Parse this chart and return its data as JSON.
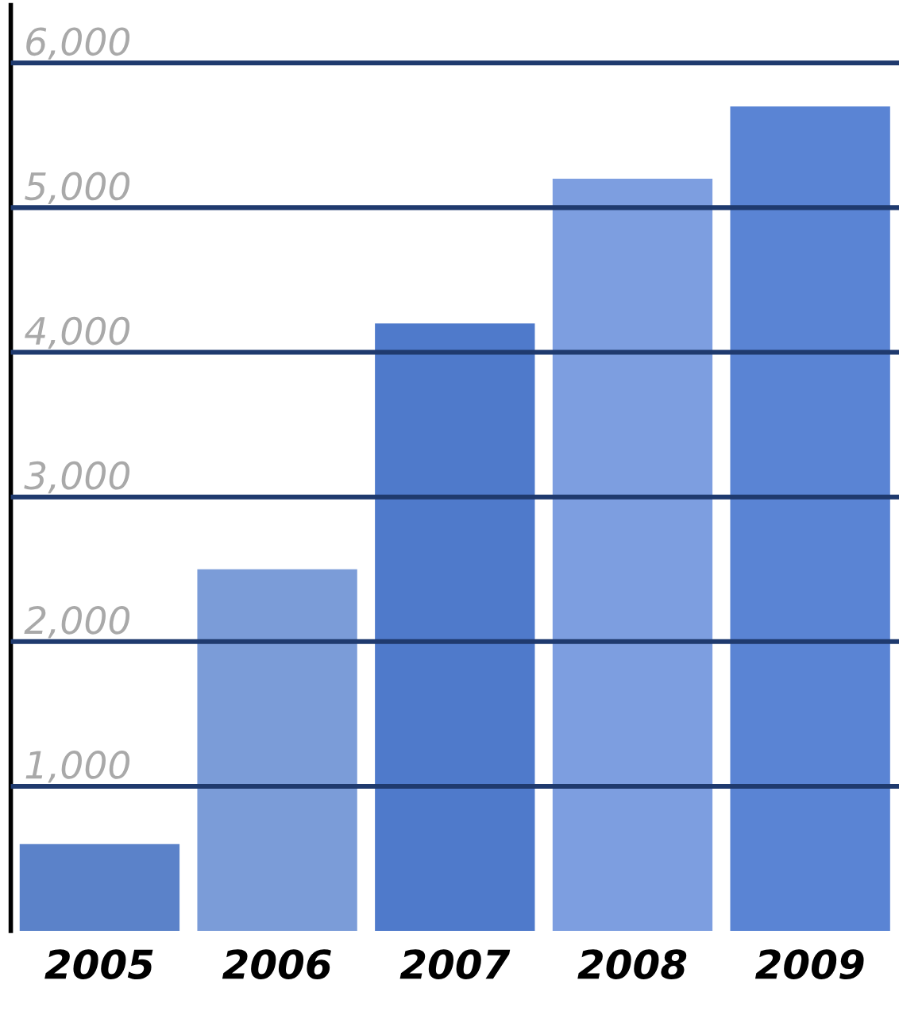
{
  "chart_data": {
    "type": "bar",
    "categories": [
      "2005",
      "2006",
      "2007",
      "2008",
      "2009"
    ],
    "values": [
      600,
      2500,
      4200,
      5200,
      5700
    ],
    "colors": [
      "#5b82c9",
      "#7b9cd8",
      "#4f7acb",
      "#7d9ee0",
      "#5a84d4"
    ],
    "ylim": [
      0,
      6400
    ],
    "yticks": [
      {
        "value": 1000,
        "label": "1,000"
      },
      {
        "value": 2000,
        "label": "2,000"
      },
      {
        "value": 3000,
        "label": "3,000"
      },
      {
        "value": 4000,
        "label": "4,000"
      },
      {
        "value": 5000,
        "label": "5,000"
      },
      {
        "value": 6000,
        "label": "6,000"
      }
    ],
    "grid": "y"
  }
}
